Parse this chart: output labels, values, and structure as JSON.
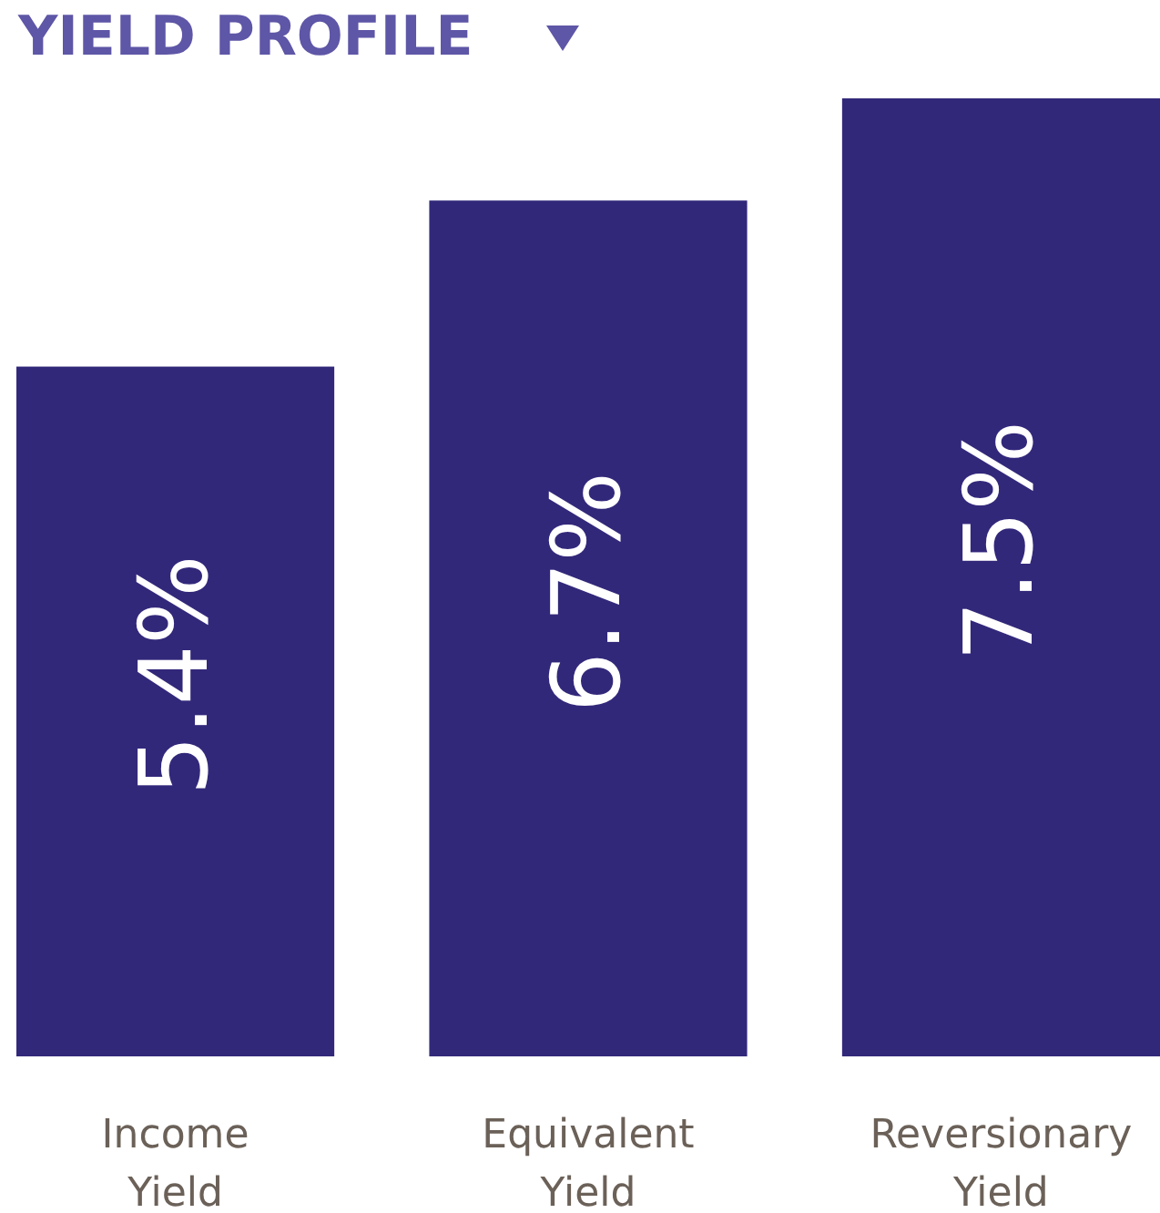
{
  "chart_data": {
    "type": "bar",
    "title": "YIELD PROFILE",
    "categories": [
      "Income Yield",
      "Equivalent Yield",
      "Reversionary Yield"
    ],
    "values": [
      5.4,
      6.7,
      7.5
    ],
    "value_labels": [
      "5.4%",
      "6.7%",
      "7.5%"
    ],
    "color": "#32287a"
  }
}
